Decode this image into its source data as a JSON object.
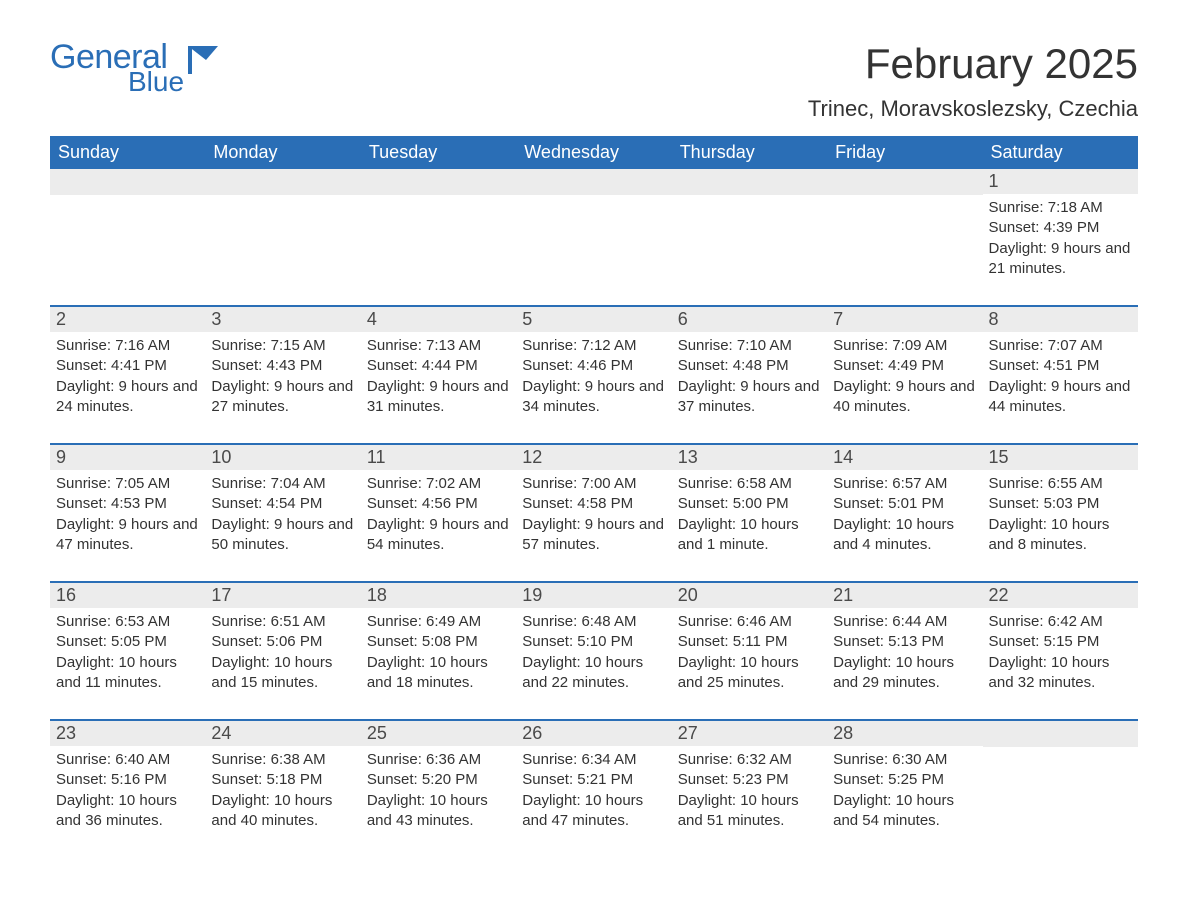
{
  "logo": {
    "line1": "General",
    "line2": "Blue",
    "iconColor": "#2a6eb6"
  },
  "title": "February 2025",
  "location": "Trinec, Moravskoslezsky, Czechia",
  "colors": {
    "headerBg": "#2a6eb6",
    "headerText": "#ffffff",
    "dayNumBg": "#ececec",
    "bodyText": "#333333",
    "accent": "#2a6eb6",
    "pageBg": "#ffffff"
  },
  "typography": {
    "titleFontSize": 42,
    "locationFontSize": 22,
    "dayHeaderFontSize": 18,
    "bodyFontSize": 15
  },
  "dayHeaders": [
    "Sunday",
    "Monday",
    "Tuesday",
    "Wednesday",
    "Thursday",
    "Friday",
    "Saturday"
  ],
  "weeks": [
    [
      null,
      null,
      null,
      null,
      null,
      null,
      {
        "n": "1",
        "sunrise": "Sunrise: 7:18 AM",
        "sunset": "Sunset: 4:39 PM",
        "daylight": "Daylight: 9 hours and 21 minutes."
      }
    ],
    [
      {
        "n": "2",
        "sunrise": "Sunrise: 7:16 AM",
        "sunset": "Sunset: 4:41 PM",
        "daylight": "Daylight: 9 hours and 24 minutes."
      },
      {
        "n": "3",
        "sunrise": "Sunrise: 7:15 AM",
        "sunset": "Sunset: 4:43 PM",
        "daylight": "Daylight: 9 hours and 27 minutes."
      },
      {
        "n": "4",
        "sunrise": "Sunrise: 7:13 AM",
        "sunset": "Sunset: 4:44 PM",
        "daylight": "Daylight: 9 hours and 31 minutes."
      },
      {
        "n": "5",
        "sunrise": "Sunrise: 7:12 AM",
        "sunset": "Sunset: 4:46 PM",
        "daylight": "Daylight: 9 hours and 34 minutes."
      },
      {
        "n": "6",
        "sunrise": "Sunrise: 7:10 AM",
        "sunset": "Sunset: 4:48 PM",
        "daylight": "Daylight: 9 hours and 37 minutes."
      },
      {
        "n": "7",
        "sunrise": "Sunrise: 7:09 AM",
        "sunset": "Sunset: 4:49 PM",
        "daylight": "Daylight: 9 hours and 40 minutes."
      },
      {
        "n": "8",
        "sunrise": "Sunrise: 7:07 AM",
        "sunset": "Sunset: 4:51 PM",
        "daylight": "Daylight: 9 hours and 44 minutes."
      }
    ],
    [
      {
        "n": "9",
        "sunrise": "Sunrise: 7:05 AM",
        "sunset": "Sunset: 4:53 PM",
        "daylight": "Daylight: 9 hours and 47 minutes."
      },
      {
        "n": "10",
        "sunrise": "Sunrise: 7:04 AM",
        "sunset": "Sunset: 4:54 PM",
        "daylight": "Daylight: 9 hours and 50 minutes."
      },
      {
        "n": "11",
        "sunrise": "Sunrise: 7:02 AM",
        "sunset": "Sunset: 4:56 PM",
        "daylight": "Daylight: 9 hours and 54 minutes."
      },
      {
        "n": "12",
        "sunrise": "Sunrise: 7:00 AM",
        "sunset": "Sunset: 4:58 PM",
        "daylight": "Daylight: 9 hours and 57 minutes."
      },
      {
        "n": "13",
        "sunrise": "Sunrise: 6:58 AM",
        "sunset": "Sunset: 5:00 PM",
        "daylight": "Daylight: 10 hours and 1 minute."
      },
      {
        "n": "14",
        "sunrise": "Sunrise: 6:57 AM",
        "sunset": "Sunset: 5:01 PM",
        "daylight": "Daylight: 10 hours and 4 minutes."
      },
      {
        "n": "15",
        "sunrise": "Sunrise: 6:55 AM",
        "sunset": "Sunset: 5:03 PM",
        "daylight": "Daylight: 10 hours and 8 minutes."
      }
    ],
    [
      {
        "n": "16",
        "sunrise": "Sunrise: 6:53 AM",
        "sunset": "Sunset: 5:05 PM",
        "daylight": "Daylight: 10 hours and 11 minutes."
      },
      {
        "n": "17",
        "sunrise": "Sunrise: 6:51 AM",
        "sunset": "Sunset: 5:06 PM",
        "daylight": "Daylight: 10 hours and 15 minutes."
      },
      {
        "n": "18",
        "sunrise": "Sunrise: 6:49 AM",
        "sunset": "Sunset: 5:08 PM",
        "daylight": "Daylight: 10 hours and 18 minutes."
      },
      {
        "n": "19",
        "sunrise": "Sunrise: 6:48 AM",
        "sunset": "Sunset: 5:10 PM",
        "daylight": "Daylight: 10 hours and 22 minutes."
      },
      {
        "n": "20",
        "sunrise": "Sunrise: 6:46 AM",
        "sunset": "Sunset: 5:11 PM",
        "daylight": "Daylight: 10 hours and 25 minutes."
      },
      {
        "n": "21",
        "sunrise": "Sunrise: 6:44 AM",
        "sunset": "Sunset: 5:13 PM",
        "daylight": "Daylight: 10 hours and 29 minutes."
      },
      {
        "n": "22",
        "sunrise": "Sunrise: 6:42 AM",
        "sunset": "Sunset: 5:15 PM",
        "daylight": "Daylight: 10 hours and 32 minutes."
      }
    ],
    [
      {
        "n": "23",
        "sunrise": "Sunrise: 6:40 AM",
        "sunset": "Sunset: 5:16 PM",
        "daylight": "Daylight: 10 hours and 36 minutes."
      },
      {
        "n": "24",
        "sunrise": "Sunrise: 6:38 AM",
        "sunset": "Sunset: 5:18 PM",
        "daylight": "Daylight: 10 hours and 40 minutes."
      },
      {
        "n": "25",
        "sunrise": "Sunrise: 6:36 AM",
        "sunset": "Sunset: 5:20 PM",
        "daylight": "Daylight: 10 hours and 43 minutes."
      },
      {
        "n": "26",
        "sunrise": "Sunrise: 6:34 AM",
        "sunset": "Sunset: 5:21 PM",
        "daylight": "Daylight: 10 hours and 47 minutes."
      },
      {
        "n": "27",
        "sunrise": "Sunrise: 6:32 AM",
        "sunset": "Sunset: 5:23 PM",
        "daylight": "Daylight: 10 hours and 51 minutes."
      },
      {
        "n": "28",
        "sunrise": "Sunrise: 6:30 AM",
        "sunset": "Sunset: 5:25 PM",
        "daylight": "Daylight: 10 hours and 54 minutes."
      },
      null
    ]
  ]
}
